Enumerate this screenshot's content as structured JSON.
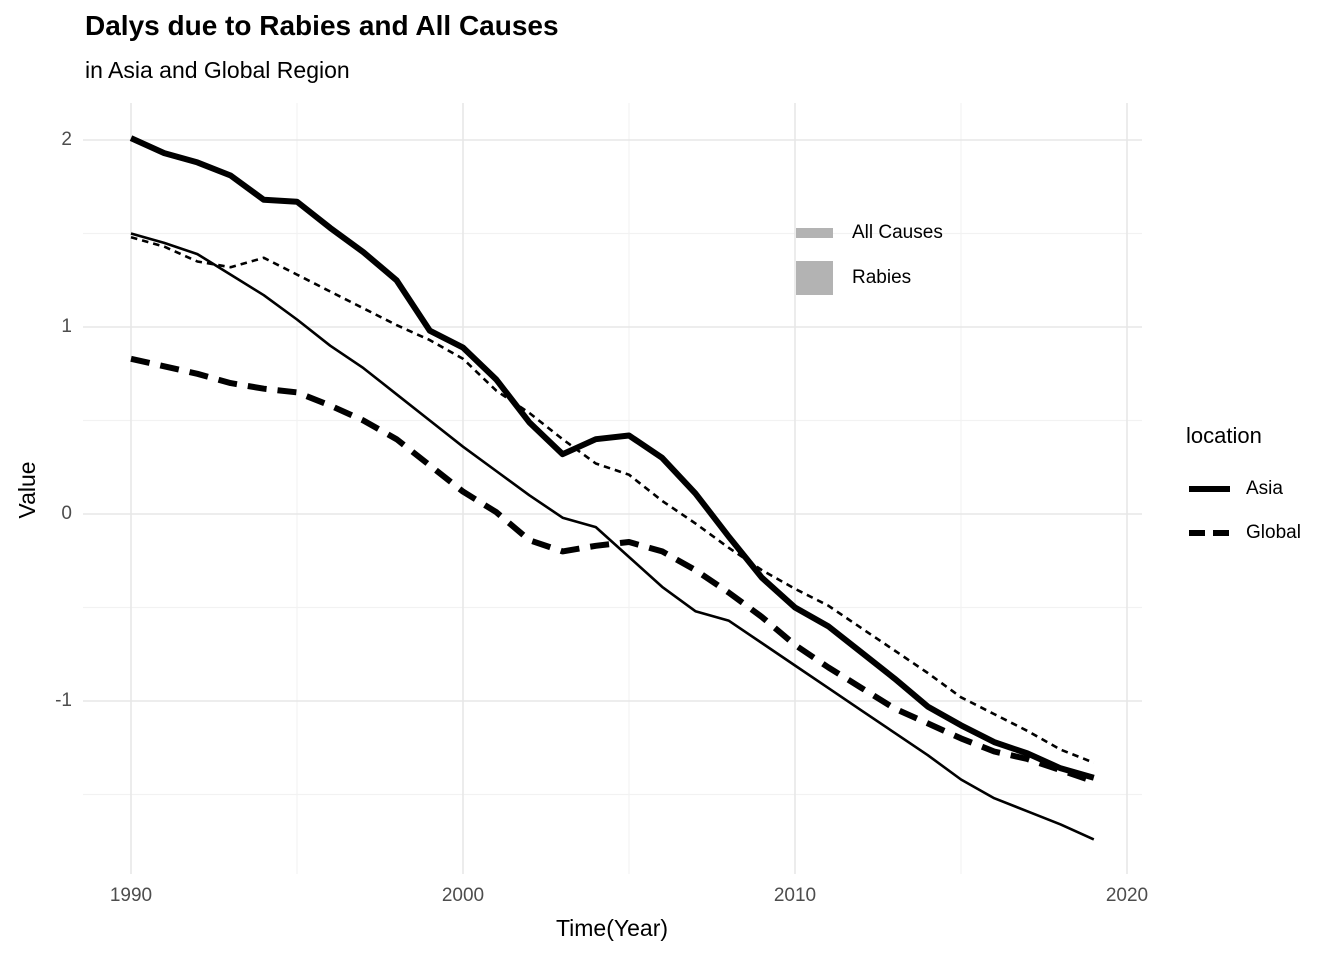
{
  "colors": {
    "line": "#000000",
    "grid_major": "#e7e7e7",
    "grid_minor": "#f2f2f2",
    "tick_label": "#4d4d4d",
    "text": "#000000",
    "legend_key_gray": "#b3b3b3",
    "background": "#ffffff"
  },
  "chart_data": {
    "type": "line",
    "title": "Dalys due to Rabies and All Causes",
    "subtitle": "in Asia and Global Region",
    "xlabel": "Time(Year)",
    "ylabel": "Value",
    "grid": true,
    "xlim": [
      1988.5,
      2020.5
    ],
    "ylim": [
      -1.95,
      2.2
    ],
    "x": [
      1990,
      1991,
      1992,
      1993,
      1994,
      1995,
      1996,
      1997,
      1998,
      1999,
      2000,
      2001,
      2002,
      2003,
      2004,
      2005,
      2006,
      2007,
      2008,
      2009,
      2010,
      2011,
      2012,
      2013,
      2014,
      2015,
      2016,
      2017,
      2018,
      2019
    ],
    "series": [
      {
        "name": "Global All Causes",
        "location": "Global",
        "cause": "All Causes",
        "values": [
          1.48,
          1.43,
          1.35,
          1.32,
          1.37,
          1.28,
          1.19,
          1.1,
          1.01,
          0.93,
          0.83,
          0.66,
          0.54,
          0.4,
          0.27,
          0.21,
          0.07,
          -0.05,
          -0.18,
          -0.3,
          -0.4,
          -0.49,
          -0.61,
          -0.73,
          -0.85,
          -0.98,
          -1.07,
          -1.16,
          -1.26,
          -1.33
        ]
      },
      {
        "name": "Asia All Causes",
        "location": "Asia",
        "cause": "All Causes",
        "values": [
          1.5,
          1.45,
          1.39,
          1.28,
          1.17,
          1.04,
          0.9,
          0.78,
          0.64,
          0.5,
          0.36,
          0.23,
          0.1,
          -0.02,
          -0.07,
          -0.23,
          -0.39,
          -0.52,
          -0.57,
          -0.69,
          -0.81,
          -0.93,
          -1.05,
          -1.17,
          -1.29,
          -1.42,
          -1.52,
          -1.59,
          -1.66,
          -1.74
        ]
      },
      {
        "name": "Asia Rabies",
        "location": "Asia",
        "cause": "Rabies",
        "values": [
          2.01,
          1.93,
          1.88,
          1.81,
          1.68,
          1.67,
          1.53,
          1.4,
          1.25,
          0.98,
          0.89,
          0.72,
          0.49,
          0.32,
          0.4,
          0.42,
          0.3,
          0.11,
          -0.12,
          -0.34,
          -0.5,
          -0.6,
          -0.74,
          -0.88,
          -1.03,
          -1.13,
          -1.22,
          -1.28,
          -1.36,
          -1.41
        ]
      },
      {
        "name": "Global Rabies",
        "location": "Global",
        "cause": "Rabies",
        "values": [
          0.83,
          0.79,
          0.75,
          0.7,
          0.67,
          0.65,
          0.58,
          0.5,
          0.4,
          0.26,
          0.12,
          0.01,
          -0.14,
          -0.2,
          -0.17,
          -0.15,
          -0.2,
          -0.3,
          -0.42,
          -0.55,
          -0.7,
          -0.82,
          -0.93,
          -1.04,
          -1.12,
          -1.2,
          -1.27,
          -1.31,
          -1.37,
          -1.43
        ]
      }
    ],
    "x_ticks": {
      "labels": [
        "1990",
        "2000",
        "2010",
        "2020"
      ],
      "values": [
        1990,
        2000,
        2010,
        2020
      ],
      "minor": [
        1995,
        2005,
        2015
      ]
    },
    "y_ticks": {
      "labels": [
        "2",
        "1",
        "0",
        "-1"
      ],
      "values": [
        2,
        1,
        0,
        -1
      ],
      "minor": [
        1.5,
        0.5,
        -0.5,
        -1.5
      ]
    },
    "legends": {
      "size": {
        "items": [
          {
            "label": "All Causes",
            "key": "thin-gray-bar"
          },
          {
            "label": "Rabies",
            "key": "thick-gray-bar"
          }
        ]
      },
      "location": {
        "title": "location",
        "items": [
          {
            "label": "Asia",
            "linetype": "solid"
          },
          {
            "label": "Global",
            "linetype": "dashed"
          }
        ]
      }
    }
  }
}
